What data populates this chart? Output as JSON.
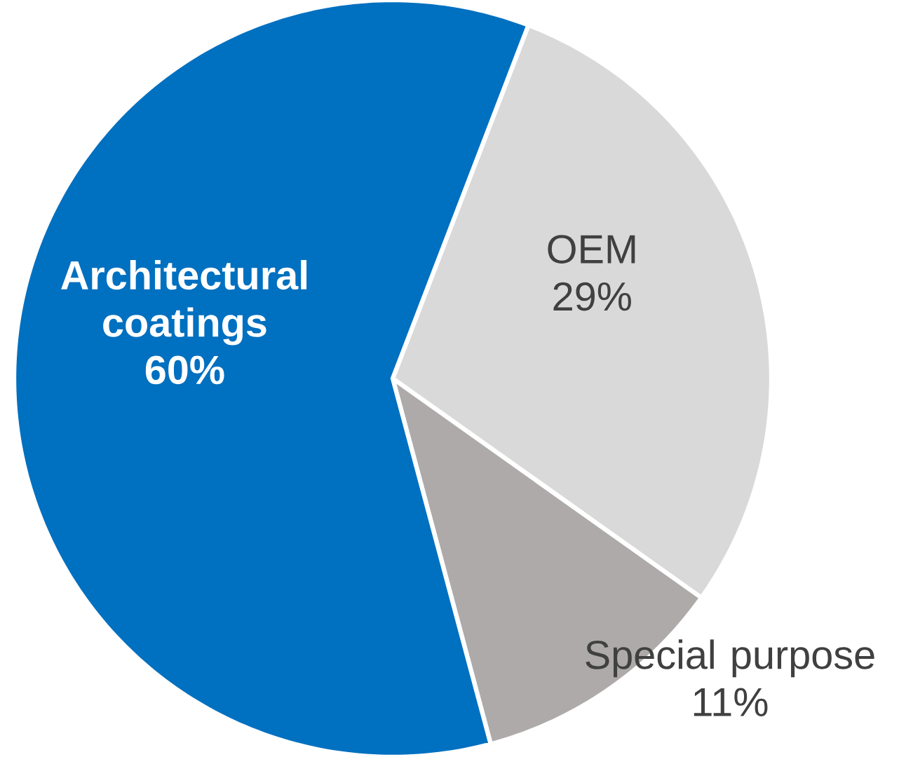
{
  "chart_data": {
    "type": "pie",
    "categories": [
      "OEM",
      "Special purpose",
      "Architectural coatings"
    ],
    "values": [
      29,
      11,
      60
    ],
    "value_labels": [
      "29%",
      "11%",
      "60%"
    ],
    "colors": [
      "#d9d9d9",
      "#aeaaaa",
      "#0070c0"
    ]
  }
}
